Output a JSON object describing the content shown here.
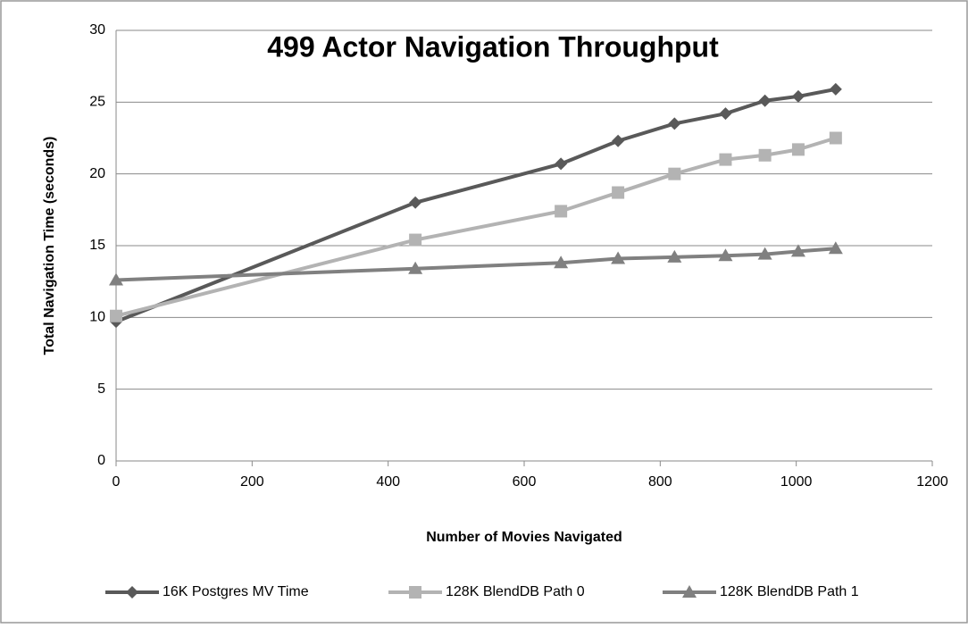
{
  "chart_data": {
    "type": "line",
    "title": "499 Actor Navigation Throughput",
    "x_label": "Number of Movies Navigated",
    "y_label": "Total Navigation Time (seconds)",
    "x": [
      0,
      440,
      654,
      738,
      821,
      896,
      954,
      1003,
      1058
    ],
    "series": [
      {
        "name": "16K Postgres  MV Time",
        "color": "#595959",
        "marker": "diamond",
        "values": [
          9.7,
          18.0,
          20.7,
          22.3,
          23.5,
          24.2,
          25.1,
          25.4,
          25.9
        ]
      },
      {
        "name": "128K BlendDB Path 0",
        "color": "#b3b3b3",
        "marker": "square",
        "values": [
          10.1,
          15.4,
          17.4,
          18.7,
          20.0,
          21.0,
          21.3,
          21.7,
          22.5
        ]
      },
      {
        "name": "128K BlendDB Path 1",
        "color": "#808080",
        "marker": "triangle",
        "values": [
          12.6,
          13.4,
          13.8,
          14.1,
          14.2,
          14.3,
          14.4,
          14.6,
          14.8
        ]
      }
    ],
    "xlim": [
      0,
      1200
    ],
    "xticks": [
      0,
      200,
      400,
      600,
      800,
      1000,
      1200
    ],
    "ylim": [
      0,
      30
    ],
    "yticks": [
      0,
      5,
      10,
      15,
      20,
      25,
      30
    ],
    "grid": true,
    "legend": "bottom"
  }
}
